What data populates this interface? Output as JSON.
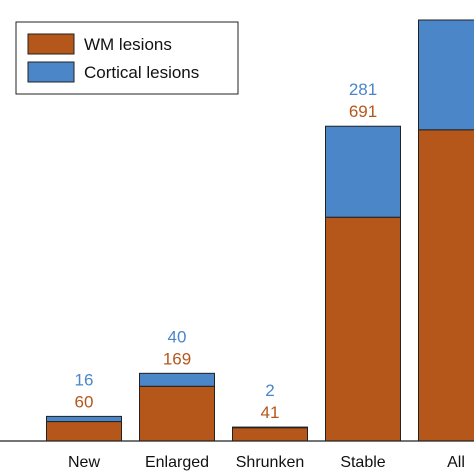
{
  "chart_data": {
    "type": "bar",
    "stacked": true,
    "categories": [
      "New",
      "Enlarged",
      "Shrunken",
      "Stable",
      "All"
    ],
    "series": [
      {
        "name": "WM lesions",
        "values": [
          60,
          169,
          41,
          691,
          961
        ],
        "color": "#b5571b"
      },
      {
        "name": "Cortical lesions",
        "values": [
          16,
          40,
          2,
          281,
          339
        ],
        "color": "#4a86c8"
      }
    ],
    "data_labels": {
      "WM lesions": [
        "60",
        "169",
        "41",
        "691",
        ""
      ],
      "Cortical lesions": [
        "16",
        "40",
        "2",
        "281",
        ""
      ]
    },
    "ylim": [
      0,
      1300
    ],
    "grid": false,
    "legend_position": "top-left",
    "label_colors": {
      "WM lesions": "#b5571b",
      "Cortical lesions": "#4a86c8"
    }
  }
}
